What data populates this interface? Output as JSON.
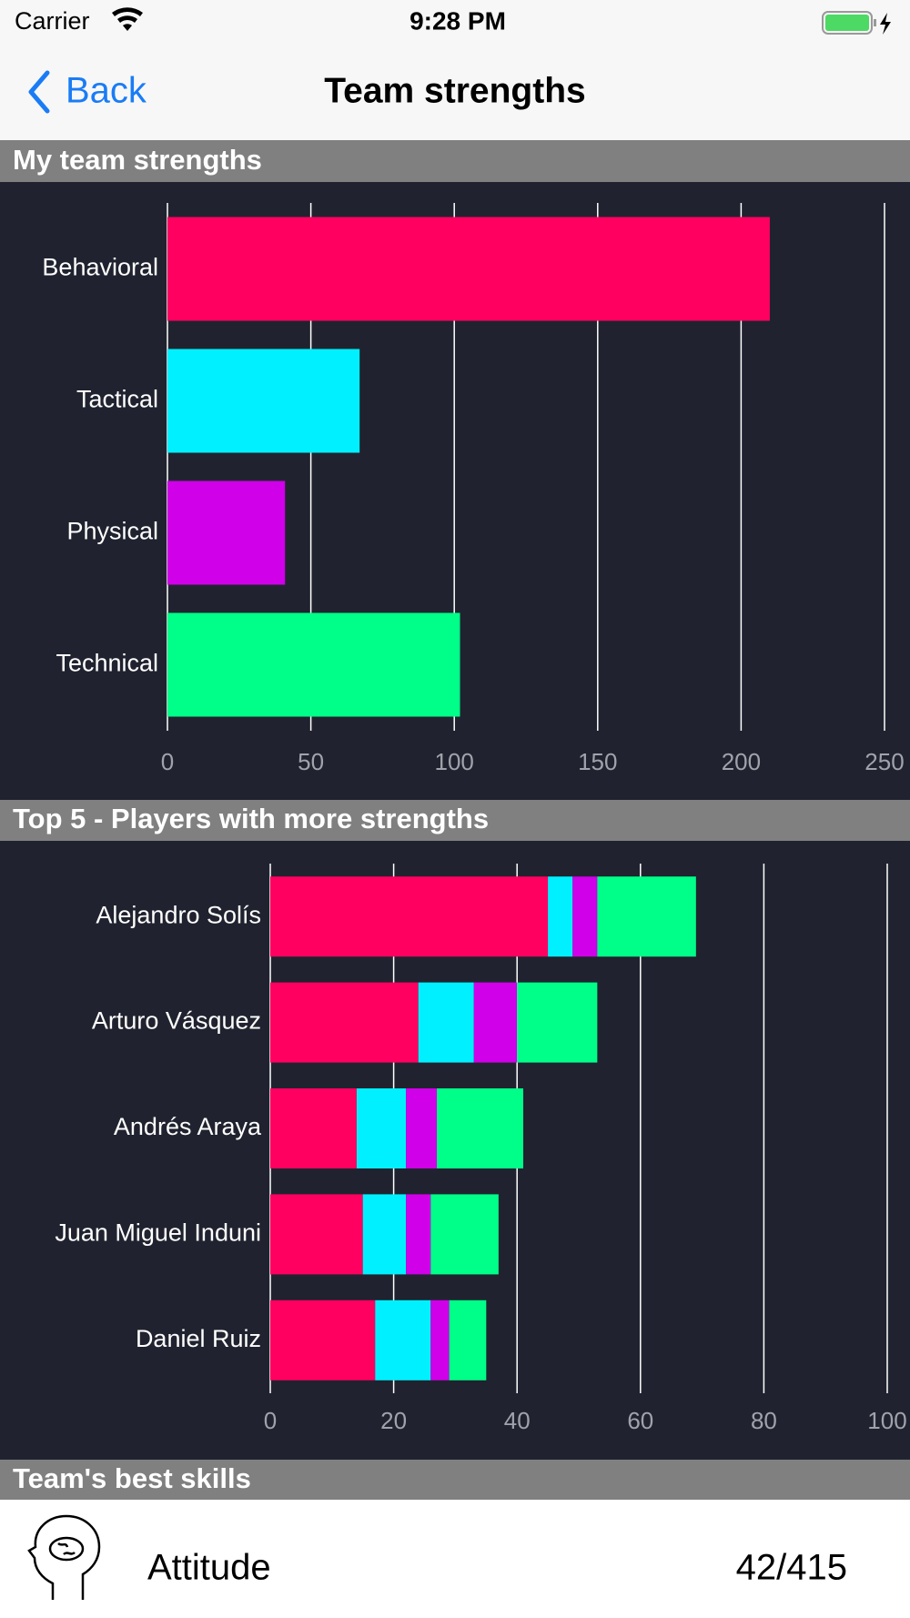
{
  "status_bar": {
    "carrier": "Carrier",
    "time": "9:28 PM"
  },
  "nav_bar": {
    "back": "Back",
    "title": "Team strengths"
  },
  "sections": [
    "My team strengths",
    "Top 5 - Players with more strengths",
    "Team's best skills"
  ],
  "chart_data": [
    {
      "type": "bar",
      "orientation": "horizontal",
      "categories": [
        "Behavioral",
        "Tactical",
        "Physical",
        "Technical"
      ],
      "values": [
        210,
        67,
        41,
        102
      ],
      "colors": [
        "#ff0060",
        "#00f0ff",
        "#d000e8",
        "#00ff88"
      ],
      "xlim": [
        0,
        250
      ],
      "xticks": [
        0,
        50,
        100,
        150,
        200,
        250
      ],
      "grid": true
    },
    {
      "type": "bar",
      "orientation": "horizontal",
      "stacked": true,
      "categories": [
        "Alejandro Solís",
        "Arturo Vásquez",
        "Andrés Araya",
        "Juan Miguel Induni",
        "Daniel Ruiz"
      ],
      "series": [
        {
          "color": "#ff0060",
          "values": [
            45,
            24,
            14,
            15,
            17
          ]
        },
        {
          "color": "#00f0ff",
          "values": [
            4,
            9,
            8,
            7,
            9
          ]
        },
        {
          "color": "#d000e8",
          "values": [
            4,
            7,
            5,
            4,
            3
          ]
        },
        {
          "color": "#00ff88",
          "values": [
            16,
            13,
            14,
            11,
            6
          ]
        }
      ],
      "xlim": [
        0,
        100
      ],
      "xticks": [
        0,
        20,
        40,
        60,
        80,
        100
      ],
      "grid": true
    }
  ],
  "skills": [
    {
      "name": "Attitude",
      "score": "42/415"
    }
  ]
}
